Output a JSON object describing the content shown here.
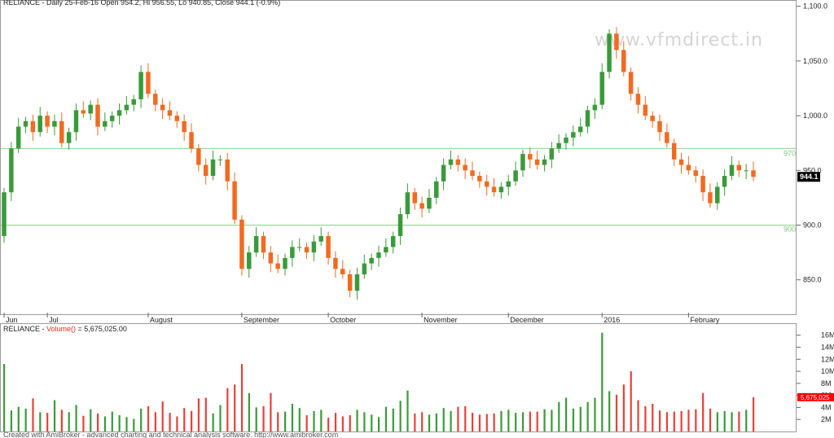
{
  "header": {
    "price_text": "RELIANCE - Daily 25-Feb-16 Open 954.2, Hi 956.55, Lo 940.85, Close 944.1 (-0.9%)",
    "volume_prefix": "RELIANCE - ",
    "volume_label": "Volume()",
    "volume_value": " = 5,675,025.00"
  },
  "watermark": "www.vfmdirect.in",
  "footer": "Created with AmiBroker - advanced charting and technical analysis software. http://www.amibroker.com",
  "colors": {
    "up": "#3a9a3a",
    "down": "#f26a21",
    "grid": "#cfcfcf",
    "ref_line": "#8fd28f",
    "last_tag_bg": "#000000",
    "vol_tag_bg": "#ff0000"
  },
  "chart_data": [
    {
      "type": "candlestick",
      "title": "RELIANCE - Daily 25-Feb-16 Open 954.2, Hi 956.55, Lo 940.85, Close 944.1 (-0.9%)",
      "y_ticks": [
        "1,100.0",
        "1,050.0",
        "1,000.0",
        "950.0",
        "900.0",
        "850.0"
      ],
      "ylim": [
        823,
        1102
      ],
      "x_labels": [
        {
          "label": "Jun",
          "index": 0
        },
        {
          "label": "Jul",
          "index": 6
        },
        {
          "label": "August",
          "index": 20
        },
        {
          "label": "September",
          "index": 33
        },
        {
          "label": "October",
          "index": 45
        },
        {
          "label": "November",
          "index": 58
        },
        {
          "label": "December",
          "index": 70
        },
        {
          "label": "2016",
          "index": 83
        },
        {
          "label": "February",
          "index": 95
        }
      ],
      "reference_lines": [
        {
          "value": 970,
          "label": "970"
        },
        {
          "value": 900,
          "label": "900"
        }
      ],
      "last_price_label": "944.1",
      "closes": [
        930,
        970,
        990,
        995,
        985,
        1000,
        990,
        995,
        975,
        985,
        1005,
        1002,
        1010,
        990,
        995,
        1000,
        1005,
        1010,
        1015,
        1040,
        1020,
        1010,
        1005,
        1000,
        995,
        985,
        970,
        955,
        945,
        960,
        960,
        940,
        905,
        860,
        875,
        890,
        875,
        865,
        860,
        870,
        880,
        880,
        875,
        885,
        890,
        870,
        860,
        855,
        840,
        855,
        865,
        870,
        875,
        880,
        890,
        910,
        930,
        920,
        915,
        925,
        940,
        955,
        960,
        955,
        950,
        945,
        940,
        935,
        930,
        935,
        940,
        950,
        965,
        960,
        955,
        960,
        970,
        975,
        980,
        985,
        990,
        1005,
        1010,
        1040,
        1075,
        1060,
        1040,
        1020,
        1010,
        1000,
        995,
        985,
        975,
        960,
        955,
        950,
        945,
        930,
        920,
        935,
        945,
        955,
        950,
        950,
        944.1
      ],
      "volumes_millions": [
        11.2,
        3.5,
        4.1,
        3.8,
        5.5,
        3.2,
        3.1,
        5.2,
        3.6,
        3.2,
        4.4,
        2.6,
        3.7,
        3.0,
        2.5,
        3.3,
        2.7,
        2.4,
        2.1,
        3.8,
        4.2,
        3.2,
        5.0,
        3.1,
        2.5,
        3.9,
        3.4,
        5.5,
        5.6,
        3.0,
        4.4,
        7.2,
        7.8,
        11.2,
        6.4,
        4.0,
        4.2,
        6.4,
        3.2,
        3.3,
        4.6,
        3.9,
        2.7,
        3.4,
        3.6,
        2.3,
        3.1,
        2.5,
        2.7,
        3.6,
        3.2,
        2.8,
        2.4,
        4.1,
        3.8,
        5.1,
        6.8,
        3.0,
        3.2,
        2.8,
        3.0,
        3.9,
        3.4,
        4.1,
        4.2,
        3.1,
        2.8,
        2.9,
        3.0,
        3.4,
        3.6,
        3.1,
        3.2,
        3.3,
        3.3,
        3.7,
        3.6,
        4.9,
        5.6,
        3.8,
        4.1,
        4.9,
        5.6,
        16.4,
        6.7,
        6.1,
        7.8,
        10.0,
        5.2,
        4.2,
        4.6,
        3.5,
        3.2,
        3.3,
        3.4,
        3.6,
        3.7,
        6.4,
        3.8,
        3.2,
        3.4,
        3.2,
        3.3,
        3.6,
        5.7
      ],
      "volume_y_ticks": [
        "16M",
        "14M",
        "12M",
        "10M",
        "8M",
        "6M",
        "4M",
        "2M"
      ],
      "volume_ylim": [
        0,
        16.5
      ],
      "volume_last_label": "5,675,025"
    }
  ]
}
